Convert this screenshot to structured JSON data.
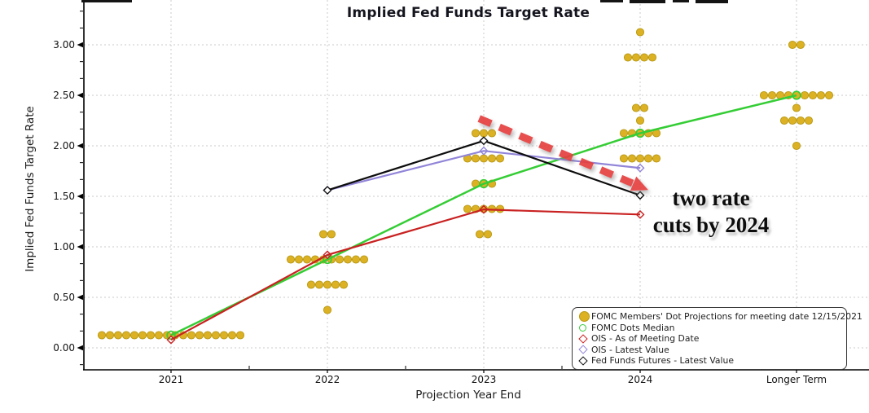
{
  "chart_data": {
    "type": "scatter",
    "title": "Implied Fed Funds Target Rate",
    "xlabel": "Projection Year End",
    "ylabel": "Implied Fed Funds Target Rate",
    "categories": [
      "2021",
      "2022",
      "2023",
      "2024",
      "Longer Term"
    ],
    "y_ticks": [
      0.0,
      0.5,
      1.0,
      1.5,
      2.0,
      2.5,
      3.0
    ],
    "y_tick_labels": [
      "0.00",
      "0.50",
      "1.00",
      "1.50",
      "2.00",
      "2.50",
      "3.00"
    ],
    "ylim_visible": [
      -0.22,
      3.44
    ],
    "grid": true,
    "legend_position": "lower right",
    "dot_projections": {
      "label": "FOMC Members' Dot Projections for meeting date 12/15/2021",
      "color": "#dcb224",
      "edge_color": "#b99812",
      "rows": [
        {
          "category": "2021",
          "value": 0.125,
          "count": 18
        },
        {
          "category": "2022",
          "value": 0.375,
          "count": 1
        },
        {
          "category": "2022",
          "value": 0.625,
          "count": 5
        },
        {
          "category": "2022",
          "value": 0.875,
          "count": 10
        },
        {
          "category": "2022",
          "value": 1.125,
          "count": 2
        },
        {
          "category": "2023",
          "value": 1.125,
          "count": 2
        },
        {
          "category": "2023",
          "value": 1.375,
          "count": 5
        },
        {
          "category": "2023",
          "value": 1.625,
          "count": 3
        },
        {
          "category": "2023",
          "value": 1.875,
          "count": 5
        },
        {
          "category": "2023",
          "value": 2.125,
          "count": 3
        },
        {
          "category": "2024",
          "value": 1.875,
          "count": 5
        },
        {
          "category": "2024",
          "value": 2.125,
          "count": 5
        },
        {
          "category": "2024",
          "value": 2.25,
          "count": 1
        },
        {
          "category": "2024",
          "value": 2.375,
          "count": 2
        },
        {
          "category": "2024",
          "value": 2.875,
          "count": 4
        },
        {
          "category": "2024",
          "value": 3.125,
          "count": 1
        },
        {
          "category": "Longer Term",
          "value": 2.0,
          "count": 1
        },
        {
          "category": "Longer Term",
          "value": 2.25,
          "count": 4
        },
        {
          "category": "Longer Term",
          "value": 2.375,
          "count": 1
        },
        {
          "category": "Longer Term",
          "value": 2.5,
          "count": 9
        },
        {
          "category": "Longer Term",
          "value": 3.0,
          "count": 2
        }
      ]
    },
    "series": [
      {
        "name": "FOMC Dots Median",
        "marker": "open-circle",
        "color": "#35cd35",
        "width": 2.5,
        "points": [
          {
            "category": "2021",
            "value": 0.125
          },
          {
            "category": "2022",
            "value": 0.875
          },
          {
            "category": "2023",
            "value": 1.625
          },
          {
            "category": "2024",
            "value": 2.125
          },
          {
            "category": "Longer Term",
            "value": 2.5
          }
        ]
      },
      {
        "name": "OIS - As of Meeting Date",
        "marker": "open-diamond",
        "color": "#c92121",
        "width": 2.2,
        "points": [
          {
            "category": "2021",
            "value": 0.08
          },
          {
            "category": "2022",
            "value": 0.92
          },
          {
            "category": "2023",
            "value": 1.37
          },
          {
            "category": "2024",
            "value": 1.32
          }
        ]
      },
      {
        "name": "OIS - Latest Value",
        "marker": "open-diamond",
        "color": "#9185d8",
        "width": 2.2,
        "points": [
          {
            "category": "2022",
            "value": 1.56
          },
          {
            "category": "2023",
            "value": 1.95
          },
          {
            "category": "2024",
            "value": 1.78
          }
        ]
      },
      {
        "name": "Fed Funds Futures - Latest Value",
        "marker": "open-diamond-white",
        "color": "#0d0d0d",
        "width": 2.2,
        "points": [
          {
            "category": "2022",
            "value": 1.56
          },
          {
            "category": "2023",
            "value": 2.05
          },
          {
            "category": "2024",
            "value": 1.51
          }
        ]
      }
    ],
    "legend": [
      {
        "label": "FOMC Members' Dot Projections for meeting date 12/15/2021",
        "marker": "filled-circle",
        "color": "#dcb224",
        "edge": "#b99812"
      },
      {
        "label": "FOMC Dots Median",
        "marker": "open-circle",
        "color": "#35cd35"
      },
      {
        "label": "OIS - As of Meeting Date",
        "marker": "open-diamond",
        "color": "#c92121"
      },
      {
        "label": "OIS - Latest Value",
        "marker": "open-diamond",
        "color": "#9185d8"
      },
      {
        "label": "Fed Funds Futures - Latest Value",
        "marker": "open-diamond",
        "color": "#0d0d0d"
      }
    ],
    "annotation": {
      "line1": "two rate",
      "line2": "cuts by 2024",
      "arrow": {
        "color": "#e54040",
        "from": {
          "xi": 1.97,
          "value": 2.27
        },
        "to": {
          "xi": 2.98,
          "value": 1.61
        }
      }
    }
  }
}
